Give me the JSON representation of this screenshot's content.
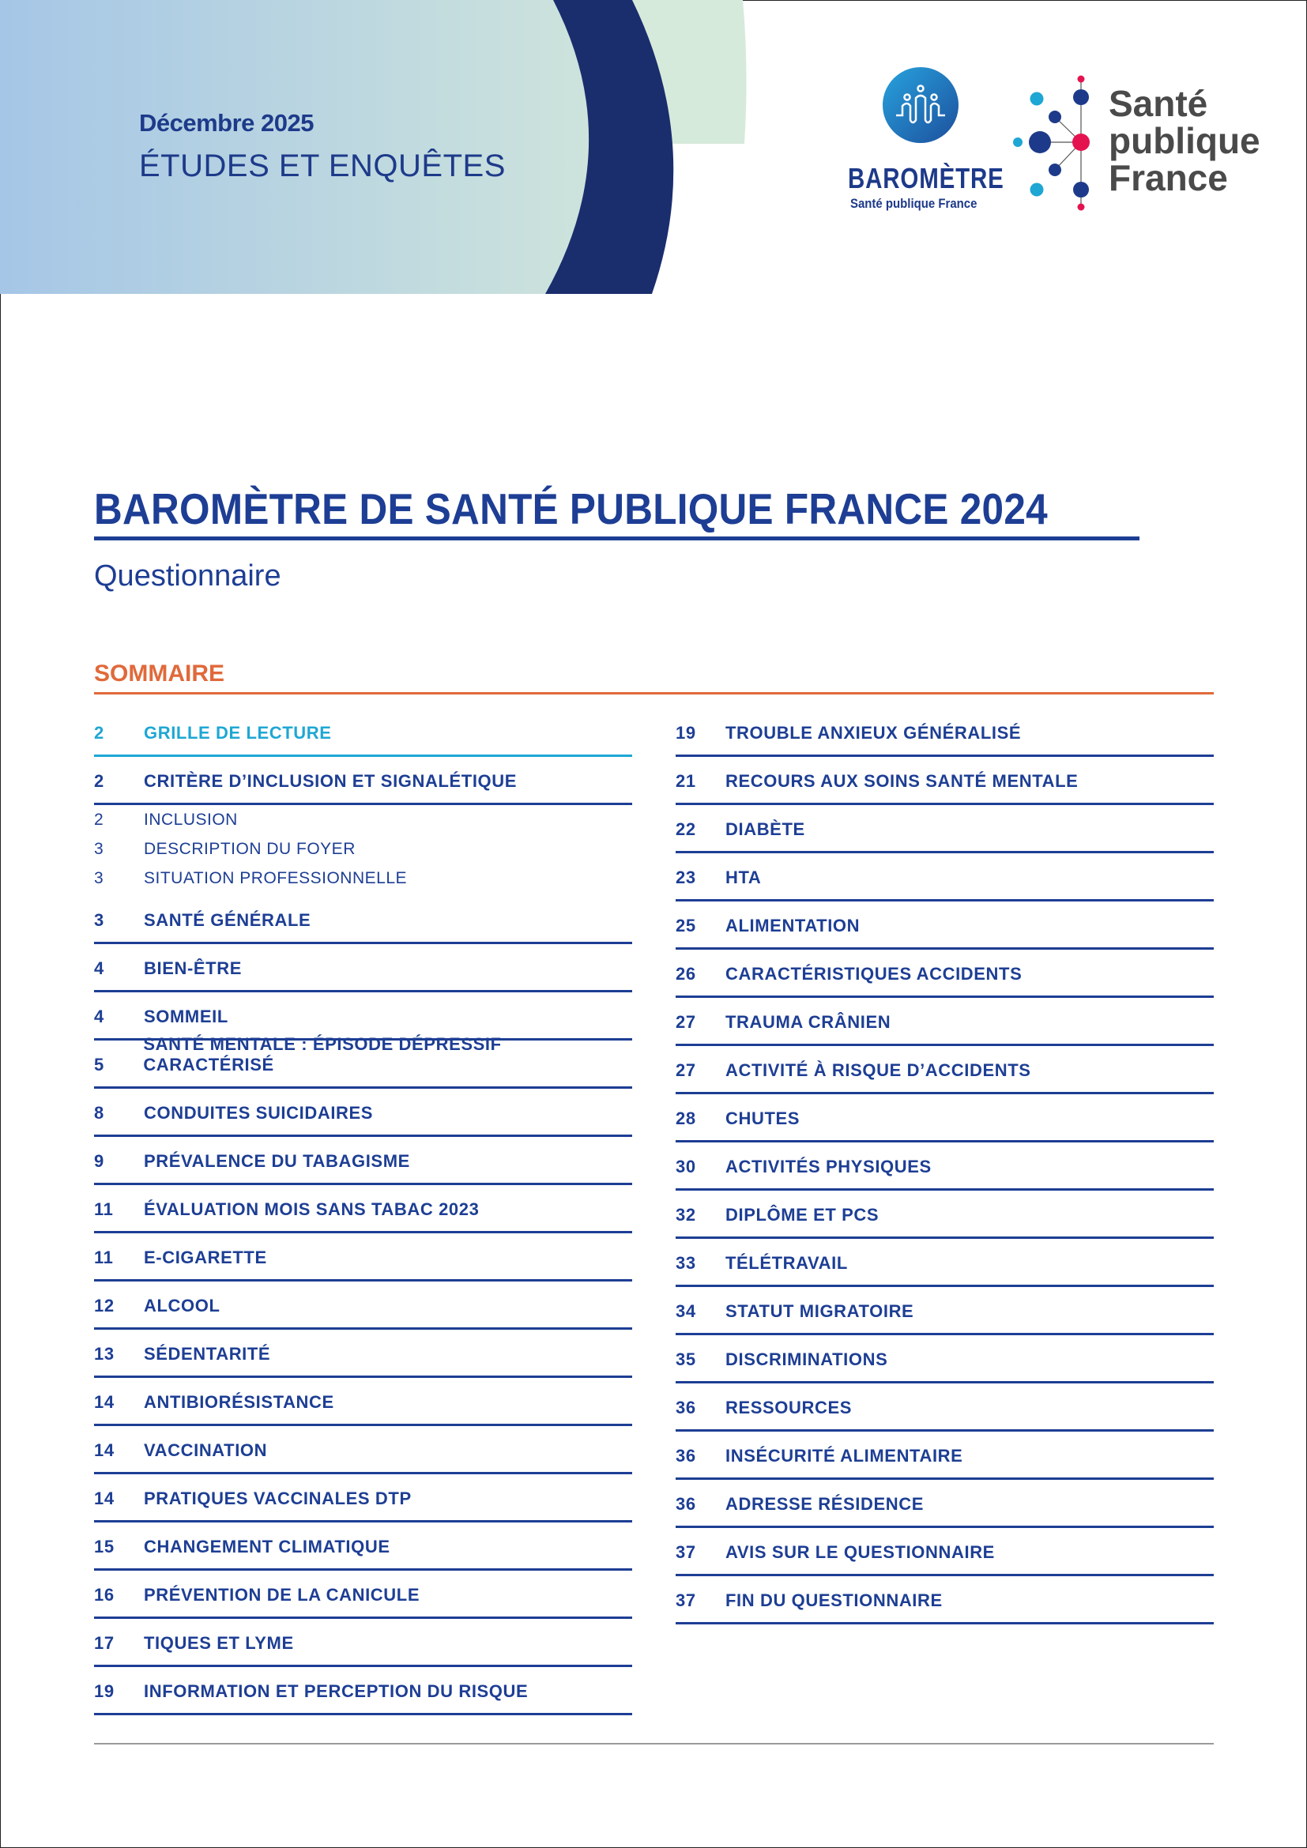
{
  "header": {
    "date": "Décembre 2025",
    "category": "ÉTUDES ET ENQUÊTES",
    "barometre_logo": {
      "title": "BAROMÈTRE",
      "subtitle": "Santé publique France"
    },
    "spf_logo": {
      "line1": "Santé",
      "line2": "publique",
      "line3": "France"
    }
  },
  "colors": {
    "primary": "#1d3e94",
    "navy": "#1a2e6e",
    "accent_orange": "#e0693a",
    "highlight_cyan": "#1ea7d4",
    "logo_red": "#e4134f"
  },
  "title": "BAROMÈTRE DE SANTÉ PUBLIQUE FRANCE 2024",
  "subtitle": "Questionnaire",
  "toc": {
    "heading": "SOMMAIRE",
    "left": [
      {
        "page": "2",
        "label": "GRILLE DE LECTURE",
        "type": "highlight"
      },
      {
        "page": "2",
        "label": "CRITÈRE D’INCLUSION ET SIGNALÉTIQUE",
        "type": "main"
      },
      {
        "page": "2",
        "label": "INCLUSION",
        "type": "sub"
      },
      {
        "page": "3",
        "label": "DESCRIPTION DU FOYER",
        "type": "sub"
      },
      {
        "page": "3",
        "label": "SITUATION PROFESSIONNELLE",
        "type": "sub"
      },
      {
        "page": "3",
        "label": "SANTÉ GÉNÉRALE",
        "type": "main"
      },
      {
        "page": "4",
        "label": "BIEN-ÊTRE",
        "type": "main"
      },
      {
        "page": "4",
        "label": "SOMMEIL",
        "type": "main"
      },
      {
        "page": "5",
        "label": "SANTÉ MENTALE : ÉPISODE DÉPRESSIF CARACTÉRISÉ",
        "type": "main"
      },
      {
        "page": "8",
        "label": "CONDUITES SUICIDAIRES",
        "type": "main"
      },
      {
        "page": "9",
        "label": "PRÉVALENCE DU TABAGISME",
        "type": "main"
      },
      {
        "page": "11",
        "label": "ÉVALUATION MOIS SANS TABAC 2023",
        "type": "main"
      },
      {
        "page": "11",
        "label": "E-CIGARETTE",
        "type": "main"
      },
      {
        "page": "12",
        "label": "ALCOOL",
        "type": "main"
      },
      {
        "page": "13",
        "label": "SÉDENTARITÉ",
        "type": "main"
      },
      {
        "page": "14",
        "label": "ANTIBIORÉSISTANCE",
        "type": "main"
      },
      {
        "page": "14",
        "label": "VACCINATION",
        "type": "main"
      },
      {
        "page": "14",
        "label": "PRATIQUES VACCINALES DTP",
        "type": "main"
      },
      {
        "page": "15",
        "label": "CHANGEMENT CLIMATIQUE",
        "type": "main"
      },
      {
        "page": "16",
        "label": "PRÉVENTION DE LA CANICULE",
        "type": "main"
      },
      {
        "page": "17",
        "label": "TIQUES ET LYME",
        "type": "main"
      },
      {
        "page": "19",
        "label": "INFORMATION ET PERCEPTION DU RISQUE",
        "type": "main"
      }
    ],
    "right": [
      {
        "page": "19",
        "label": "TROUBLE ANXIEUX GÉNÉRALISÉ",
        "type": "main"
      },
      {
        "page": "21",
        "label": "RECOURS AUX SOINS SANTÉ MENTALE",
        "type": "main"
      },
      {
        "page": "22",
        "label": "DIABÈTE",
        "type": "main"
      },
      {
        "page": "23",
        "label": "HTA",
        "type": "main"
      },
      {
        "page": "25",
        "label": "ALIMENTATION",
        "type": "main"
      },
      {
        "page": "26",
        "label": "CARACTÉRISTIQUES ACCIDENTS",
        "type": "main"
      },
      {
        "page": "27",
        "label": "TRAUMA CRÂNIEN",
        "type": "main"
      },
      {
        "page": "27",
        "label": "ACTIVITÉ À RISQUE D’ACCIDENTS",
        "type": "main"
      },
      {
        "page": "28",
        "label": "CHUTES",
        "type": "main"
      },
      {
        "page": "30",
        "label": "ACTIVITÉS PHYSIQUES",
        "type": "main"
      },
      {
        "page": "32",
        "label": "DIPLÔME ET PCS",
        "type": "main"
      },
      {
        "page": "33",
        "label": "TÉLÉTRAVAIL",
        "type": "main"
      },
      {
        "page": "34",
        "label": "STATUT MIGRATOIRE",
        "type": "main"
      },
      {
        "page": "35",
        "label": "DISCRIMINATIONS",
        "type": "main"
      },
      {
        "page": "36",
        "label": "RESSOURCES",
        "type": "main"
      },
      {
        "page": "36",
        "label": "INSÉCURITÉ ALIMENTAIRE",
        "type": "main"
      },
      {
        "page": "36",
        "label": "ADRESSE RÉSIDENCE",
        "type": "main"
      },
      {
        "page": "37",
        "label": "AVIS SUR LE QUESTIONNAIRE",
        "type": "main"
      },
      {
        "page": "37",
        "label": "FIN DU QUESTIONNAIRE",
        "type": "main"
      }
    ]
  }
}
